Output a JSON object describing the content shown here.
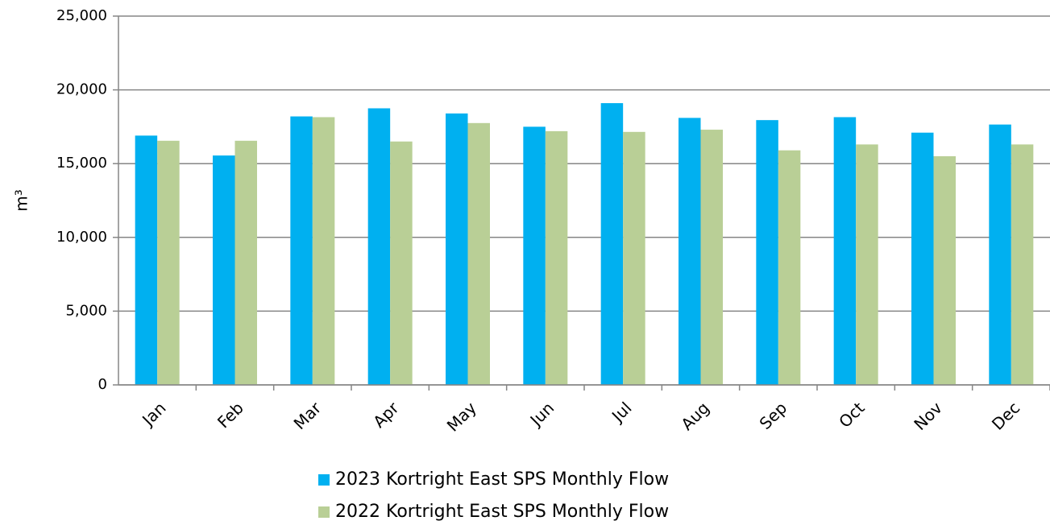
{
  "chart_data": {
    "type": "bar",
    "y_label": "m³",
    "categories": [
      "Jan",
      "Feb",
      "Mar",
      "Apr",
      "May",
      "Jun",
      "Jul",
      "Aug",
      "Sep",
      "Oct",
      "Nov",
      "Dec"
    ],
    "series": [
      {
        "name": "2023 Kortright East SPS Monthly Flow",
        "color": "#00b0f0",
        "values": [
          16900,
          15550,
          18200,
          18750,
          18400,
          17500,
          19100,
          18100,
          17950,
          18150,
          17100,
          17650
        ]
      },
      {
        "name": "2022 Kortright East SPS Monthly Flow",
        "color": "#b9cf96",
        "values": [
          16550,
          16550,
          18150,
          16500,
          17750,
          17200,
          17150,
          17300,
          15900,
          16300,
          15500,
          16300
        ]
      }
    ],
    "ylim": [
      0,
      25000
    ],
    "yticks": [
      0,
      {
        "value": 5000,
        "label": "5,000"
      },
      {
        "value": 10000,
        "label": "10,000"
      },
      {
        "value": 15000,
        "label": "15,000"
      },
      {
        "value": 20000,
        "label": "20,000"
      },
      {
        "value": 25000,
        "label": "25,000"
      }
    ],
    "grid": true,
    "legend": "bottom"
  }
}
